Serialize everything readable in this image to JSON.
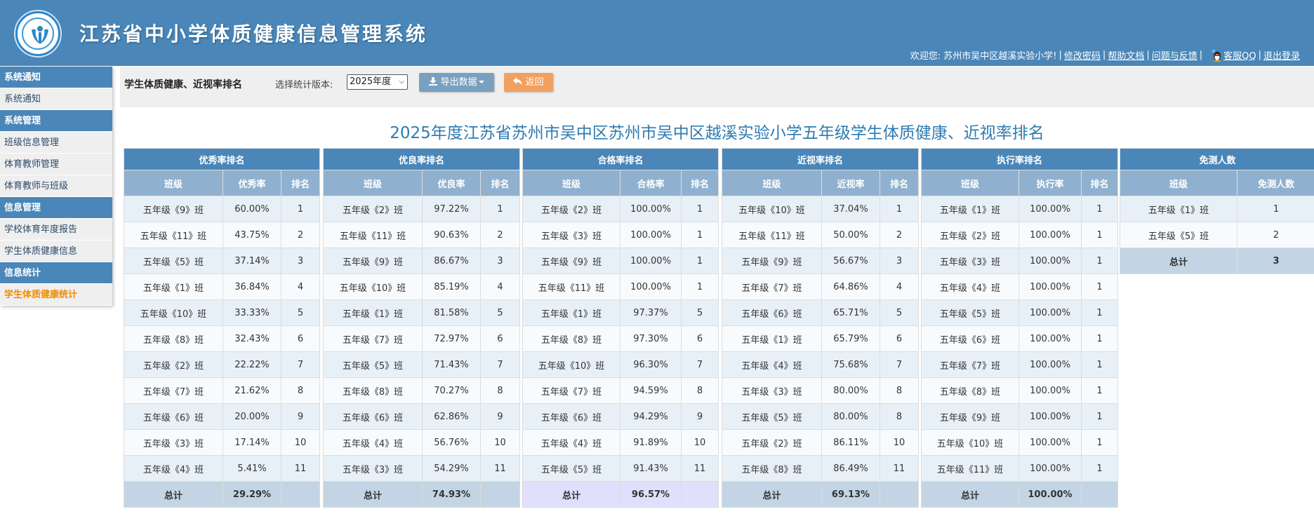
{
  "header": {
    "app_title": "江苏省中小学体质健康信息管理系统",
    "welcome": "欢迎您: 苏州市吴中区越溪实验小学!",
    "links": [
      "修改密码",
      "帮助文档",
      "问题与反馈",
      "客服QQ",
      "退出登录"
    ]
  },
  "sidebar": {
    "groups": [
      {
        "label": "系统通知",
        "items": [
          "系统通知"
        ]
      },
      {
        "label": "系统管理",
        "items": [
          "班级信息管理",
          "体育教师管理",
          "体育教师与班级"
        ]
      },
      {
        "label": "信息管理",
        "items": [
          "学校体育年度报告",
          "学生体质健康信息"
        ]
      },
      {
        "label": "信息统计",
        "items": [
          "学生体质健康统计"
        ]
      }
    ],
    "active_item": "学生体质健康统计"
  },
  "toolbar": {
    "title": "学生体质健康、近视率排名",
    "version_label": "选择统计版本:",
    "version_value": "2025年度",
    "export_label": "导出数据",
    "back_label": "返回"
  },
  "page_title": "2025年度江苏省苏州市吴中区苏州市吴中区越溪实验小学五年级学生体质健康、近视率排名",
  "tables": [
    {
      "title": "优秀率排名",
      "columns": [
        "班级",
        "优秀率",
        "排名"
      ],
      "rows": [
        [
          "五年级《9》班",
          "60.00%",
          "1"
        ],
        [
          "五年级《11》班",
          "43.75%",
          "2"
        ],
        [
          "五年级《5》班",
          "37.14%",
          "3"
        ],
        [
          "五年级《1》班",
          "36.84%",
          "4"
        ],
        [
          "五年级《10》班",
          "33.33%",
          "5"
        ],
        [
          "五年级《8》班",
          "32.43%",
          "6"
        ],
        [
          "五年级《2》班",
          "22.22%",
          "7"
        ],
        [
          "五年级《7》班",
          "21.62%",
          "8"
        ],
        [
          "五年级《6》班",
          "20.00%",
          "9"
        ],
        [
          "五年级《3》班",
          "17.14%",
          "10"
        ],
        [
          "五年级《4》班",
          "5.41%",
          "11"
        ]
      ],
      "total": [
        "总计",
        "29.29%",
        ""
      ]
    },
    {
      "title": "优良率排名",
      "columns": [
        "班级",
        "优良率",
        "排名"
      ],
      "rows": [
        [
          "五年级《2》班",
          "97.22%",
          "1"
        ],
        [
          "五年级《11》班",
          "90.63%",
          "2"
        ],
        [
          "五年级《9》班",
          "86.67%",
          "3"
        ],
        [
          "五年级《10》班",
          "85.19%",
          "4"
        ],
        [
          "五年级《1》班",
          "81.58%",
          "5"
        ],
        [
          "五年级《7》班",
          "72.97%",
          "6"
        ],
        [
          "五年级《5》班",
          "71.43%",
          "7"
        ],
        [
          "五年级《8》班",
          "70.27%",
          "8"
        ],
        [
          "五年级《6》班",
          "62.86%",
          "9"
        ],
        [
          "五年级《4》班",
          "56.76%",
          "10"
        ],
        [
          "五年级《3》班",
          "54.29%",
          "11"
        ]
      ],
      "total": [
        "总计",
        "74.93%",
        ""
      ]
    },
    {
      "title": "合格率排名",
      "columns": [
        "班级",
        "合格率",
        "排名"
      ],
      "rows": [
        [
          "五年级《2》班",
          "100.00%",
          "1"
        ],
        [
          "五年级《3》班",
          "100.00%",
          "1"
        ],
        [
          "五年级《9》班",
          "100.00%",
          "1"
        ],
        [
          "五年级《11》班",
          "100.00%",
          "1"
        ],
        [
          "五年级《1》班",
          "97.37%",
          "5"
        ],
        [
          "五年级《8》班",
          "97.30%",
          "6"
        ],
        [
          "五年级《10》班",
          "96.30%",
          "7"
        ],
        [
          "五年级《7》班",
          "94.59%",
          "8"
        ],
        [
          "五年级《6》班",
          "94.29%",
          "9"
        ],
        [
          "五年级《4》班",
          "91.89%",
          "10"
        ],
        [
          "五年级《5》班",
          "91.43%",
          "11"
        ]
      ],
      "total": [
        "总计",
        "96.57%",
        ""
      ]
    },
    {
      "title": "近视率排名",
      "columns": [
        "班级",
        "近视率",
        "排名"
      ],
      "rows": [
        [
          "五年级《10》班",
          "37.04%",
          "1"
        ],
        [
          "五年级《11》班",
          "50.00%",
          "2"
        ],
        [
          "五年级《9》班",
          "56.67%",
          "3"
        ],
        [
          "五年级《7》班",
          "64.86%",
          "4"
        ],
        [
          "五年级《6》班",
          "65.71%",
          "5"
        ],
        [
          "五年级《1》班",
          "65.79%",
          "6"
        ],
        [
          "五年级《4》班",
          "75.68%",
          "7"
        ],
        [
          "五年级《3》班",
          "80.00%",
          "8"
        ],
        [
          "五年级《5》班",
          "80.00%",
          "8"
        ],
        [
          "五年级《2》班",
          "86.11%",
          "10"
        ],
        [
          "五年级《8》班",
          "86.49%",
          "11"
        ]
      ],
      "total": [
        "总计",
        "69.13%",
        ""
      ]
    },
    {
      "title": "执行率排名",
      "columns": [
        "班级",
        "执行率",
        "排名"
      ],
      "rows": [
        [
          "五年级《1》班",
          "100.00%",
          "1"
        ],
        [
          "五年级《2》班",
          "100.00%",
          "1"
        ],
        [
          "五年级《3》班",
          "100.00%",
          "1"
        ],
        [
          "五年级《4》班",
          "100.00%",
          "1"
        ],
        [
          "五年级《5》班",
          "100.00%",
          "1"
        ],
        [
          "五年级《6》班",
          "100.00%",
          "1"
        ],
        [
          "五年级《7》班",
          "100.00%",
          "1"
        ],
        [
          "五年级《8》班",
          "100.00%",
          "1"
        ],
        [
          "五年级《9》班",
          "100.00%",
          "1"
        ],
        [
          "五年级《10》班",
          "100.00%",
          "1"
        ],
        [
          "五年级《11》班",
          "100.00%",
          "1"
        ]
      ],
      "total": [
        "总计",
        "100.00%",
        ""
      ]
    },
    {
      "title": "免测人数",
      "columns": [
        "班级",
        "免测人数"
      ],
      "rows": [
        [
          "五年级《1》班",
          "1"
        ],
        [
          "五年级《5》班",
          "2"
        ]
      ],
      "total": [
        "总计",
        "3"
      ]
    }
  ],
  "colors": {
    "brand": "#4a86b8",
    "subheader": "#8fb1cf",
    "total_row": "#c3d5e4",
    "total_row_highlight": "#e0e0fc",
    "active_menu": "#f08c00",
    "export_button": "#7aa0c0",
    "back_button": "#f0a060"
  }
}
